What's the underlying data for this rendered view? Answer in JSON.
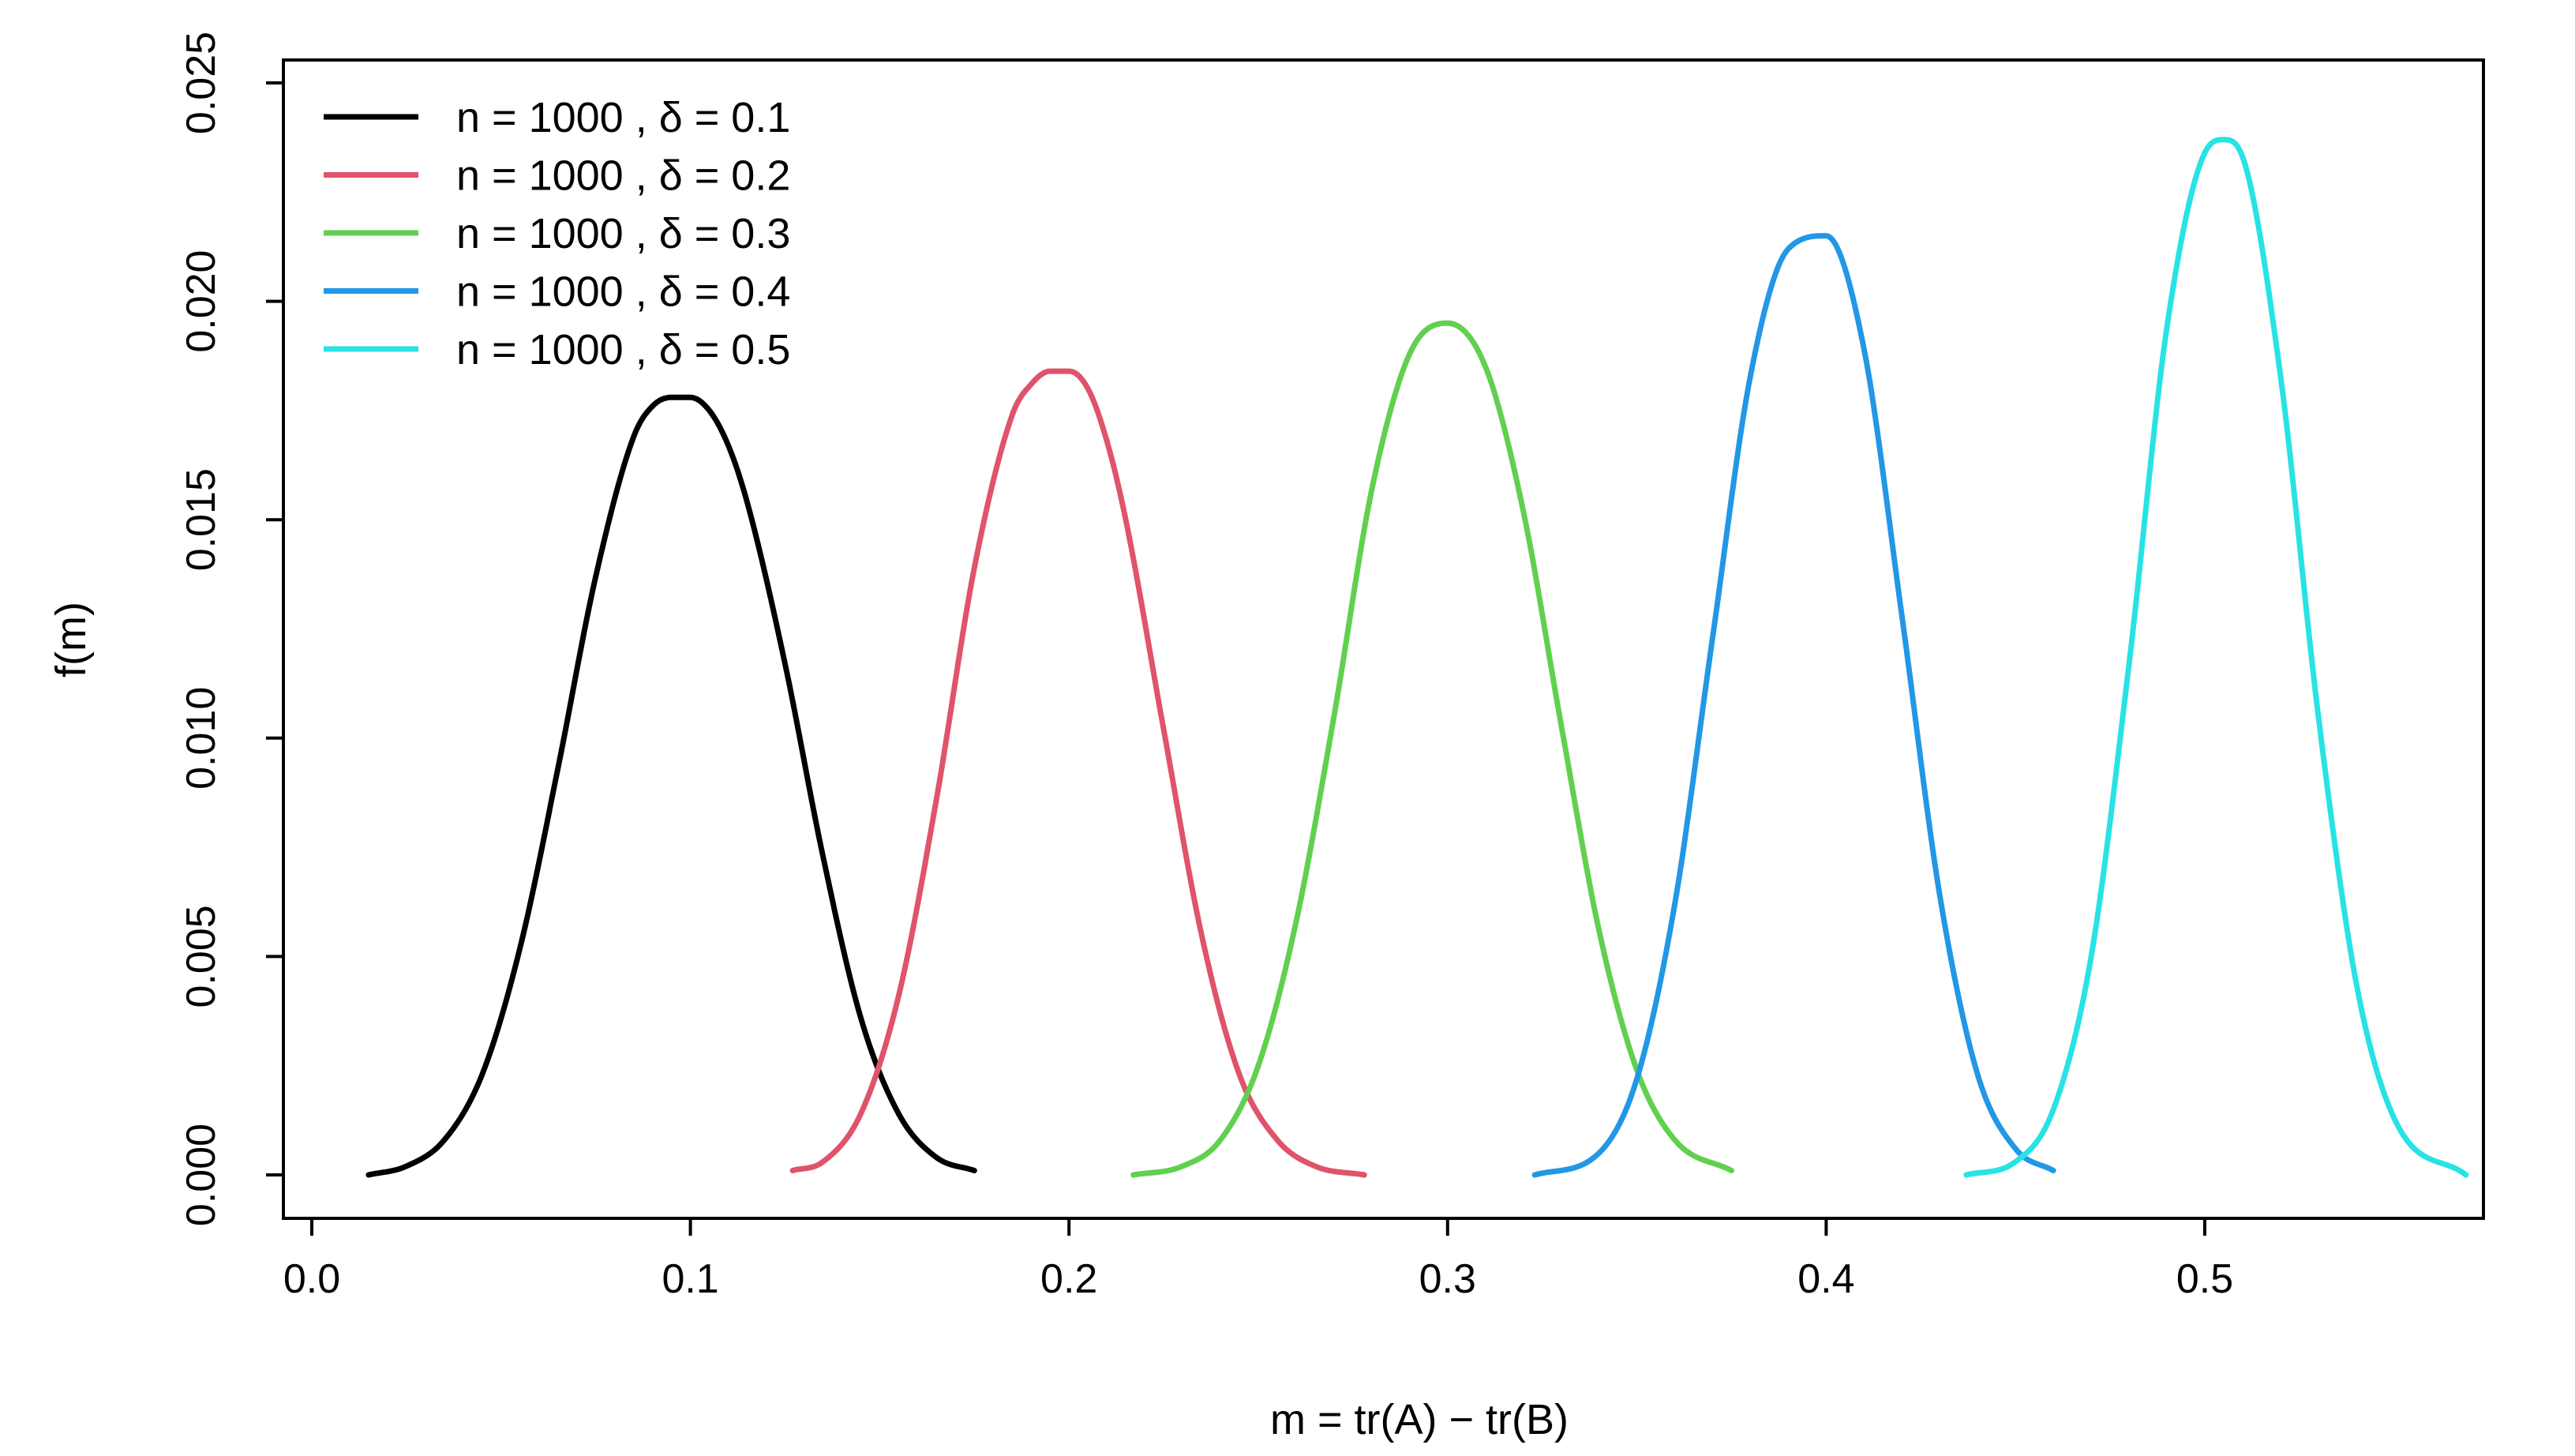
{
  "chart_data": {
    "type": "line",
    "title": "",
    "xlabel": "m = tr(A) − tr(B)",
    "ylabel": "f(m)",
    "xlim": [
      -0.005,
      0.577
    ],
    "ylim": [
      -0.001,
      0.0255
    ],
    "x_ticks": [
      0.0,
      0.1,
      0.2,
      0.3,
      0.4,
      0.5
    ],
    "x_tick_labels": [
      "0.0",
      "0.1",
      "0.2",
      "0.3",
      "0.4",
      "0.5"
    ],
    "y_ticks": [
      0.0,
      0.005,
      0.01,
      0.015,
      0.02,
      0.025
    ],
    "y_tick_labels": [
      "0.000",
      "0.005",
      "0.010",
      "0.015",
      "0.020",
      "0.025"
    ],
    "grid": false,
    "legend_position": "top-left",
    "series": [
      {
        "name": "n = 1000 , δ = 0.1",
        "color": "#000000",
        "x": [
          0.015,
          0.025,
          0.035,
          0.045,
          0.055,
          0.065,
          0.075,
          0.085,
          0.09,
          0.095,
          0.1,
          0.105,
          0.11,
          0.115,
          0.125,
          0.135,
          0.145,
          0.155,
          0.165,
          0.175
        ],
        "y": [
          0.0,
          0.0002,
          0.0008,
          0.0023,
          0.0052,
          0.0093,
          0.0137,
          0.0169,
          0.0176,
          0.0178,
          0.0178,
          0.0175,
          0.0167,
          0.0154,
          0.0117,
          0.0073,
          0.0036,
          0.0014,
          0.0004,
          0.0001
        ]
      },
      {
        "name": "n = 1000 , δ = 0.2",
        "color": "#df536b",
        "x": [
          0.127,
          0.135,
          0.145,
          0.155,
          0.165,
          0.175,
          0.185,
          0.19,
          0.195,
          0.2,
          0.205,
          0.21,
          0.215,
          0.225,
          0.235,
          0.245,
          0.255,
          0.265,
          0.278
        ],
        "y": [
          0.0001,
          0.0003,
          0.0014,
          0.0041,
          0.0086,
          0.0139,
          0.0174,
          0.0181,
          0.0184,
          0.0184,
          0.018,
          0.0168,
          0.015,
          0.0102,
          0.0055,
          0.0023,
          0.0008,
          0.0002,
          0.0
        ],
        "peak": 0.0185
      },
      {
        "name": "n = 1000 , δ = 0.3",
        "color": "#61d04f",
        "x": [
          0.217,
          0.23,
          0.24,
          0.25,
          0.26,
          0.27,
          0.28,
          0.29,
          0.3,
          0.31,
          0.32,
          0.33,
          0.34,
          0.35,
          0.36,
          0.375
        ],
        "y": [
          0.0,
          0.0002,
          0.0008,
          0.0025,
          0.0058,
          0.0105,
          0.0157,
          0.0188,
          0.0195,
          0.0185,
          0.0152,
          0.0103,
          0.0056,
          0.0024,
          0.0008,
          0.0001
        ],
        "peak": 0.0195
      },
      {
        "name": "n = 1000 , δ = 0.4",
        "color": "#2297e6",
        "x": [
          0.323,
          0.34,
          0.35,
          0.36,
          0.37,
          0.38,
          0.39,
          0.4,
          0.41,
          0.42,
          0.43,
          0.44,
          0.45,
          0.46
        ],
        "y": [
          0.0,
          0.0005,
          0.0022,
          0.0062,
          0.0123,
          0.0183,
          0.0212,
          0.0215,
          0.0189,
          0.0128,
          0.0064,
          0.0023,
          0.0006,
          0.0001
        ],
        "peak": 0.0216
      },
      {
        "name": "n = 1000 , δ = 0.5",
        "color": "#28e2e5",
        "x": [
          0.437,
          0.45,
          0.46,
          0.47,
          0.48,
          0.49,
          0.5,
          0.505,
          0.51,
          0.52,
          0.53,
          0.54,
          0.55,
          0.569
        ],
        "y": [
          0.0,
          0.0003,
          0.0015,
          0.005,
          0.0117,
          0.0194,
          0.0234,
          0.0237,
          0.0233,
          0.0183,
          0.0105,
          0.0044,
          0.0013,
          0.0
        ],
        "peak": 0.0237
      }
    ]
  }
}
